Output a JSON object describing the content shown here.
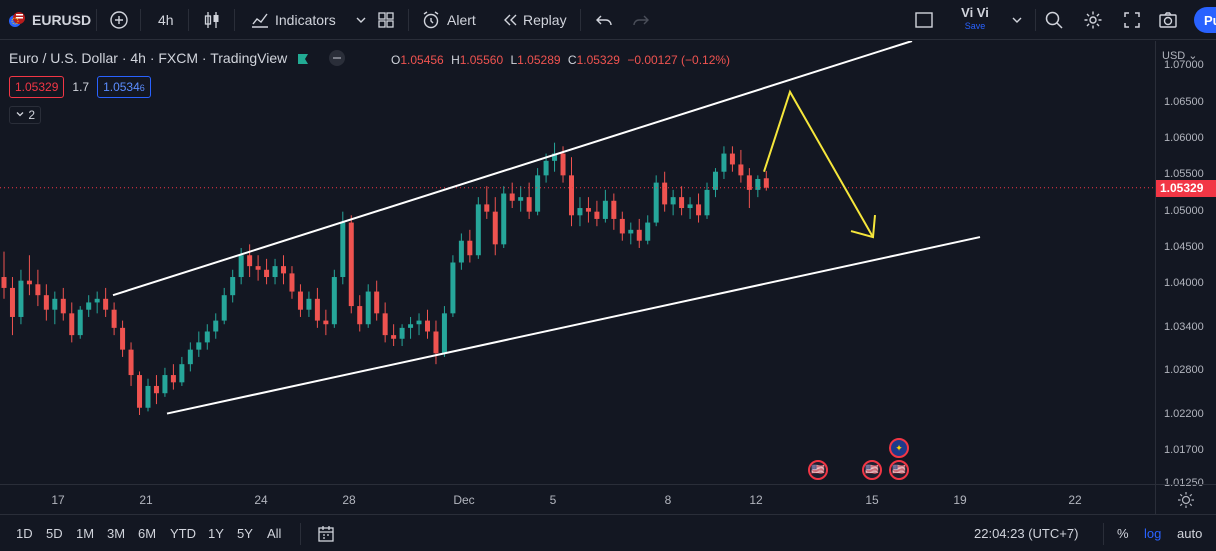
{
  "toolbar": {
    "symbol": "EURUSD",
    "interval": "4h",
    "indicators_label": "Indicators",
    "alert_label": "Alert",
    "replay_label": "Replay",
    "user_name": "Vi Vi",
    "save_label": "Save",
    "publish_label": "Pu"
  },
  "legend": {
    "title": "Euro / U.S. Dollar · 4h · FXCM · TradingView",
    "o_key": "O",
    "o_val": "1.05456",
    "h_key": "H",
    "h_val": "1.05560",
    "l_key": "L",
    "l_val": "1.05289",
    "c_key": "C",
    "c_val": "1.05329",
    "change": "−0.00127 (−0.12%)",
    "sell_price": "1.05329",
    "spread": "1.7",
    "buy_price_main": "1.0534",
    "buy_price_small": "6",
    "indicator_count": "2"
  },
  "price_axis": {
    "currency": "USD",
    "labels": [
      "1.07000",
      "1.06500",
      "1.06000",
      "1.05500",
      "1.05000",
      "1.04500",
      "1.04000",
      "1.03400",
      "1.02800",
      "1.02200",
      "1.01700",
      "1.01250"
    ],
    "last_price": "1.05329"
  },
  "time_axis": {
    "labels": [
      "17",
      "21",
      "24",
      "28",
      "Dec",
      "5",
      "8",
      "12",
      "15",
      "19",
      "22"
    ]
  },
  "bottombar": {
    "ranges": [
      "1D",
      "5D",
      "1M",
      "3M",
      "6M",
      "YTD",
      "1Y",
      "5Y",
      "All"
    ],
    "clock": "22:04:23 (UTC+7)",
    "percent": "%",
    "log": "log",
    "auto": "auto"
  },
  "colors": {
    "background": "#131722",
    "up": "#26a69a",
    "down": "#ef5350",
    "channel": "#ffffff",
    "arrow": "#f5e63b",
    "accent": "#2962ff"
  },
  "chart_data": {
    "type": "candlestick",
    "symbol": "EURUSD",
    "ylim": [
      1.0125,
      1.0735
    ],
    "candles": [
      [
        1.041,
        1.0445,
        1.038,
        1.0395
      ],
      [
        1.0395,
        1.041,
        1.033,
        1.0355
      ],
      [
        1.0355,
        1.042,
        1.0345,
        1.0405
      ],
      [
        1.0405,
        1.044,
        1.0385,
        1.04
      ],
      [
        1.04,
        1.042,
        1.037,
        1.0385
      ],
      [
        1.0385,
        1.04,
        1.035,
        1.0365
      ],
      [
        1.0365,
        1.039,
        1.0345,
        1.038
      ],
      [
        1.038,
        1.0395,
        1.035,
        1.036
      ],
      [
        1.036,
        1.0375,
        1.032,
        1.033
      ],
      [
        1.033,
        1.037,
        1.0325,
        1.0365
      ],
      [
        1.0365,
        1.0385,
        1.0355,
        1.0375
      ],
      [
        1.0375,
        1.039,
        1.036,
        1.038
      ],
      [
        1.038,
        1.0395,
        1.0355,
        1.0365
      ],
      [
        1.0365,
        1.0375,
        1.033,
        1.034
      ],
      [
        1.034,
        1.035,
        1.03,
        1.031
      ],
      [
        1.031,
        1.032,
        1.026,
        1.0275
      ],
      [
        1.0275,
        1.028,
        1.022,
        1.023
      ],
      [
        1.023,
        1.027,
        1.0225,
        1.026
      ],
      [
        1.026,
        1.0275,
        1.0235,
        1.025
      ],
      [
        1.025,
        1.0285,
        1.0245,
        1.0275
      ],
      [
        1.0275,
        1.029,
        1.0255,
        1.0265
      ],
      [
        1.0265,
        1.03,
        1.026,
        1.029
      ],
      [
        1.029,
        1.032,
        1.028,
        1.031
      ],
      [
        1.031,
        1.0335,
        1.03,
        1.032
      ],
      [
        1.032,
        1.0345,
        1.031,
        1.0335
      ],
      [
        1.0335,
        1.036,
        1.0325,
        1.035
      ],
      [
        1.035,
        1.0395,
        1.0345,
        1.0385
      ],
      [
        1.0385,
        1.042,
        1.0375,
        1.041
      ],
      [
        1.041,
        1.045,
        1.04,
        1.044
      ],
      [
        1.044,
        1.0455,
        1.041,
        1.0425
      ],
      [
        1.0425,
        1.044,
        1.0405,
        1.042
      ],
      [
        1.042,
        1.0435,
        1.04,
        1.041
      ],
      [
        1.041,
        1.0435,
        1.04,
        1.0425
      ],
      [
        1.0425,
        1.044,
        1.04,
        1.0415
      ],
      [
        1.0415,
        1.0425,
        1.038,
        1.039
      ],
      [
        1.039,
        1.04,
        1.0355,
        1.0365
      ],
      [
        1.0365,
        1.039,
        1.0355,
        1.038
      ],
      [
        1.038,
        1.0395,
        1.034,
        1.035
      ],
      [
        1.035,
        1.0365,
        1.033,
        1.0345
      ],
      [
        1.0345,
        1.042,
        1.034,
        1.041
      ],
      [
        1.041,
        1.05,
        1.04,
        1.0485
      ],
      [
        1.0485,
        1.0495,
        1.036,
        1.037
      ],
      [
        1.037,
        1.0385,
        1.0335,
        1.0345
      ],
      [
        1.0345,
        1.04,
        1.034,
        1.039
      ],
      [
        1.039,
        1.0405,
        1.035,
        1.036
      ],
      [
        1.036,
        1.0375,
        1.032,
        1.033
      ],
      [
        1.033,
        1.0345,
        1.0315,
        1.0325
      ],
      [
        1.0325,
        1.0345,
        1.0315,
        1.034
      ],
      [
        1.034,
        1.0355,
        1.0325,
        1.0345
      ],
      [
        1.0345,
        1.036,
        1.033,
        1.035
      ],
      [
        1.035,
        1.0365,
        1.0325,
        1.0335
      ],
      [
        1.0335,
        1.035,
        1.029,
        1.0305
      ],
      [
        1.0305,
        1.037,
        1.03,
        1.036
      ],
      [
        1.036,
        1.044,
        1.0355,
        1.043
      ],
      [
        1.043,
        1.047,
        1.042,
        1.046
      ],
      [
        1.046,
        1.0475,
        1.043,
        1.044
      ],
      [
        1.044,
        1.052,
        1.0435,
        1.051
      ],
      [
        1.051,
        1.0535,
        1.049,
        1.05
      ],
      [
        1.05,
        1.052,
        1.044,
        1.0455
      ],
      [
        1.0455,
        1.0535,
        1.045,
        1.0525
      ],
      [
        1.0525,
        1.054,
        1.0505,
        1.0515
      ],
      [
        1.0515,
        1.0535,
        1.05,
        1.052
      ],
      [
        1.052,
        1.054,
        1.049,
        1.05
      ],
      [
        1.05,
        1.056,
        1.0495,
        1.055
      ],
      [
        1.055,
        1.058,
        1.054,
        1.057
      ],
      [
        1.057,
        1.0595,
        1.0555,
        1.058
      ],
      [
        1.058,
        1.059,
        1.054,
        1.055
      ],
      [
        1.055,
        1.0575,
        1.048,
        1.0495
      ],
      [
        1.0495,
        1.052,
        1.048,
        1.0505
      ],
      [
        1.0505,
        1.052,
        1.0485,
        1.05
      ],
      [
        1.05,
        1.0515,
        1.048,
        1.049
      ],
      [
        1.049,
        1.053,
        1.0485,
        1.0515
      ],
      [
        1.0515,
        1.0525,
        1.0475,
        1.049
      ],
      [
        1.049,
        1.05,
        1.046,
        1.047
      ],
      [
        1.047,
        1.0485,
        1.0455,
        1.0475
      ],
      [
        1.0475,
        1.049,
        1.045,
        1.046
      ],
      [
        1.046,
        1.0495,
        1.0455,
        1.0485
      ],
      [
        1.0485,
        1.055,
        1.048,
        1.054
      ],
      [
        1.054,
        1.0555,
        1.05,
        1.051
      ],
      [
        1.051,
        1.053,
        1.0495,
        1.052
      ],
      [
        1.052,
        1.0535,
        1.0495,
        1.0505
      ],
      [
        1.0505,
        1.052,
        1.049,
        1.051
      ],
      [
        1.051,
        1.0525,
        1.0485,
        1.0495
      ],
      [
        1.0495,
        1.054,
        1.049,
        1.053
      ],
      [
        1.053,
        1.056,
        1.052,
        1.0555
      ],
      [
        1.0555,
        1.059,
        1.0545,
        1.058
      ],
      [
        1.058,
        1.059,
        1.0555,
        1.0565
      ],
      [
        1.0565,
        1.0585,
        1.054,
        1.055
      ],
      [
        1.055,
        1.056,
        1.0505,
        1.053
      ],
      [
        1.053,
        1.055,
        1.052,
        1.0545
      ],
      [
        1.0546,
        1.0556,
        1.0529,
        1.0533
      ]
    ],
    "channel_lines": [
      {
        "from": [
          "2022-11-18",
          1.0385
        ],
        "to": [
          "2022-12-13",
          1.0735
        ]
      },
      {
        "from": [
          "2022-11-21",
          1.0222
        ],
        "to": [
          "2022-12-19",
          1.0465
        ]
      }
    ],
    "arrow": {
      "from": 1.0555,
      "peak": 1.0665,
      "to": 1.0465
    },
    "last_price": 1.05329
  }
}
